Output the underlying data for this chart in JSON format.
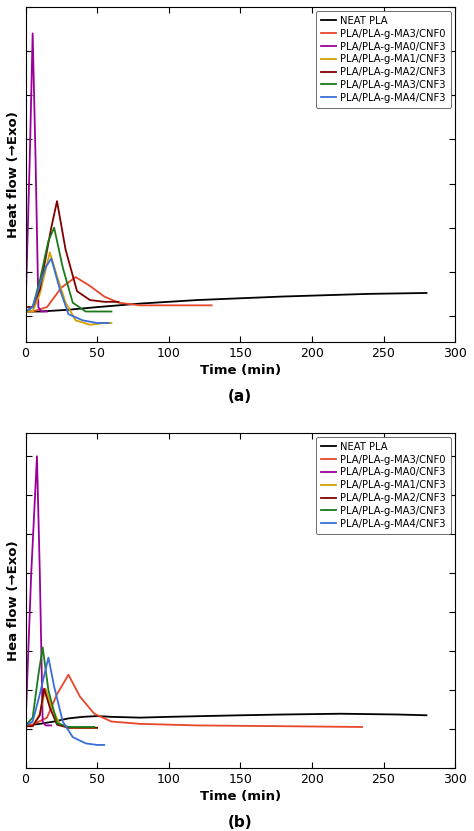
{
  "legend_labels": [
    "NEAT PLA",
    "PLA/PLA-g-MA3/CNF0",
    "PLA/PLA-g-MA0/CNF3",
    "PLA/PLA-g-MA1/CNF3",
    "PLA/PLA-g-MA2/CNF3",
    "PLA/PLA-g-MA3/CNF3",
    "PLA/PLA-g-MA4/CNF3"
  ],
  "colors": [
    "#000000",
    "#e8472a",
    "#9b009b",
    "#d4a000",
    "#800000",
    "#1a7a1a",
    "#3a6fd8"
  ],
  "xlabel": "Time (min)",
  "ylabel_a": "Heat flow (→Exo)",
  "ylabel_b": "Hea flow (→Exo)",
  "label_a": "(a)",
  "label_b": "(b)",
  "xlim": [
    0,
    300
  ],
  "xticks": [
    0,
    50,
    100,
    150,
    200,
    250,
    300
  ],
  "figsize": [
    4.74,
    8.31
  ],
  "dpi": 100,
  "panel_a": {
    "ylim": [
      -0.3,
      3.5
    ],
    "neat_pla": {
      "x": [
        0,
        2,
        5,
        10,
        20,
        30,
        50,
        80,
        120,
        180,
        240,
        280
      ],
      "y": [
        0.05,
        0.05,
        0.05,
        0.05,
        0.06,
        0.07,
        0.1,
        0.14,
        0.18,
        0.22,
        0.25,
        0.26
      ]
    },
    "ma3cnf0": {
      "x": [
        0,
        5,
        15,
        25,
        35,
        45,
        55,
        65,
        80,
        100,
        115,
        130
      ],
      "y": [
        0.05,
        0.05,
        0.1,
        0.32,
        0.44,
        0.34,
        0.22,
        0.15,
        0.12,
        0.12,
        0.12,
        0.12
      ]
    },
    "ma0cnf3": {
      "x": [
        0,
        3,
        5,
        7,
        9,
        11,
        13,
        15
      ],
      "y": [
        0.05,
        1.8,
        3.2,
        1.8,
        0.1,
        0.05,
        0.05,
        0.05
      ]
    },
    "ma1cnf3": {
      "x": [
        0,
        5,
        10,
        17,
        22,
        28,
        35,
        45,
        55,
        60
      ],
      "y": [
        0.05,
        0.05,
        0.25,
        0.72,
        0.45,
        0.15,
        -0.05,
        -0.1,
        -0.08,
        -0.08
      ]
    },
    "ma2cnf3": {
      "x": [
        0,
        5,
        10,
        18,
        22,
        28,
        36,
        45,
        55,
        65
      ],
      "y": [
        0.1,
        0.1,
        0.3,
        1.0,
        1.3,
        0.75,
        0.28,
        0.18,
        0.16,
        0.16
      ]
    },
    "ma3cnf3": {
      "x": [
        0,
        5,
        10,
        16,
        20,
        26,
        33,
        42,
        52,
        60
      ],
      "y": [
        0.05,
        0.1,
        0.4,
        0.85,
        1.0,
        0.55,
        0.15,
        0.05,
        0.05,
        0.05
      ]
    },
    "ma4cnf3": {
      "x": [
        0,
        5,
        10,
        14,
        18,
        24,
        30,
        40,
        50,
        58
      ],
      "y": [
        0.05,
        0.1,
        0.35,
        0.55,
        0.65,
        0.3,
        0.02,
        -0.05,
        -0.08,
        -0.08
      ]
    }
  },
  "panel_b": {
    "ylim": [
      -0.5,
      3.8
    ],
    "neat_pla": {
      "x": [
        0,
        5,
        10,
        20,
        30,
        40,
        50,
        60,
        80,
        100,
        150,
        180,
        220,
        260,
        280
      ],
      "y": [
        0.05,
        0.06,
        0.07,
        0.1,
        0.14,
        0.16,
        0.17,
        0.16,
        0.15,
        0.16,
        0.18,
        0.19,
        0.2,
        0.19,
        0.18
      ]
    },
    "ma3cnf0": {
      "x": [
        0,
        5,
        15,
        22,
        30,
        38,
        48,
        60,
        80,
        120,
        180,
        235
      ],
      "y": [
        0.06,
        0.06,
        0.15,
        0.45,
        0.7,
        0.42,
        0.2,
        0.1,
        0.07,
        0.05,
        0.04,
        0.03
      ]
    },
    "ma0cnf3": {
      "x": [
        0,
        4,
        8,
        10,
        12,
        14,
        16,
        18
      ],
      "y": [
        0.05,
        2.0,
        3.5,
        2.0,
        0.1,
        0.05,
        0.05,
        0.05
      ]
    },
    "ma1cnf3": {
      "x": [
        0,
        5,
        10,
        14,
        18,
        24,
        30,
        40,
        50
      ],
      "y": [
        0.04,
        0.04,
        0.2,
        0.52,
        0.3,
        0.06,
        0.02,
        0.02,
        0.02
      ]
    },
    "ma2cnf3": {
      "x": [
        0,
        5,
        10,
        13,
        17,
        22,
        30,
        40,
        50
      ],
      "y": [
        0.04,
        0.04,
        0.18,
        0.52,
        0.28,
        0.06,
        0.02,
        0.02,
        0.02
      ]
    },
    "ma3cnf3": {
      "x": [
        0,
        5,
        9,
        12,
        16,
        22,
        30,
        40,
        48
      ],
      "y": [
        0.05,
        0.15,
        0.7,
        1.05,
        0.5,
        0.08,
        0.03,
        0.03,
        0.03
      ]
    },
    "ma4cnf3": {
      "x": [
        0,
        5,
        10,
        16,
        20,
        26,
        33,
        42,
        50,
        55
      ],
      "y": [
        0.05,
        0.1,
        0.45,
        0.92,
        0.55,
        0.1,
        -0.1,
        -0.18,
        -0.2,
        -0.2
      ]
    }
  }
}
